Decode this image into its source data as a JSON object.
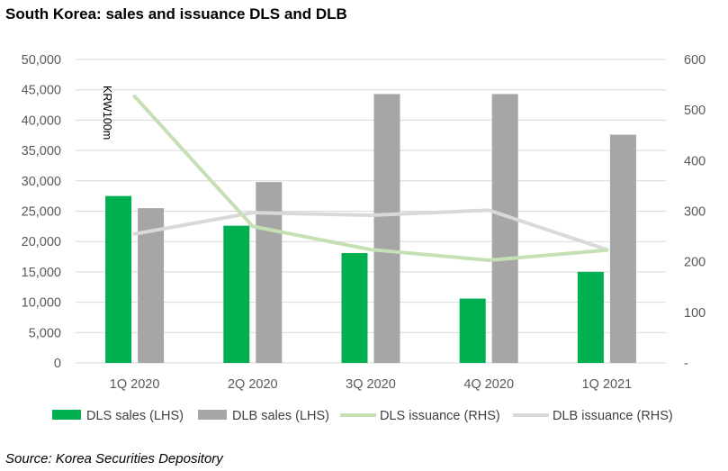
{
  "title": "South Korea: sales and issuance DLS and DLB",
  "source": "Source: Korea Securities Depository",
  "colors": {
    "dls_sales": "#00b050",
    "dlb_sales": "#a6a6a6",
    "dls_issuance": "#c5e0b4",
    "dlb_issuance": "#d9d9d9",
    "gridline": "#d9d9d9"
  },
  "chart_data": {
    "type": "bar",
    "categories": [
      "1Q 2020",
      "2Q 2020",
      "3Q 2020",
      "4Q 2020",
      "1Q 2021"
    ],
    "unit_label": "KRW100m",
    "left_axis": {
      "ylim": [
        0,
        50000
      ],
      "ticks": [
        "0",
        "5,000",
        "10,000",
        "15,000",
        "20,000",
        "25,000",
        "30,000",
        "35,000",
        "40,000",
        "45,000",
        "50,000"
      ]
    },
    "right_axis": {
      "ylim": [
        0,
        600
      ],
      "ticks": [
        "-",
        "100",
        "200",
        "300",
        "400",
        "500",
        "600"
      ]
    },
    "grid": true,
    "legend_position": "bottom",
    "series": [
      {
        "name": "DLS sales (LHS)",
        "type": "bar",
        "axis": "left",
        "values": [
          27500,
          22600,
          18100,
          10600,
          15000
        ]
      },
      {
        "name": "DLB sales (LHS)",
        "type": "bar",
        "axis": "left",
        "values": [
          25500,
          29800,
          44300,
          44300,
          37600
        ]
      },
      {
        "name": "DLS issuance (RHS)",
        "type": "line",
        "axis": "right",
        "values": [
          527,
          270,
          224,
          203,
          223
        ]
      },
      {
        "name": "DLB issuance (RHS)",
        "type": "line",
        "axis": "right",
        "values": [
          255,
          297,
          292,
          302,
          224
        ]
      }
    ]
  }
}
